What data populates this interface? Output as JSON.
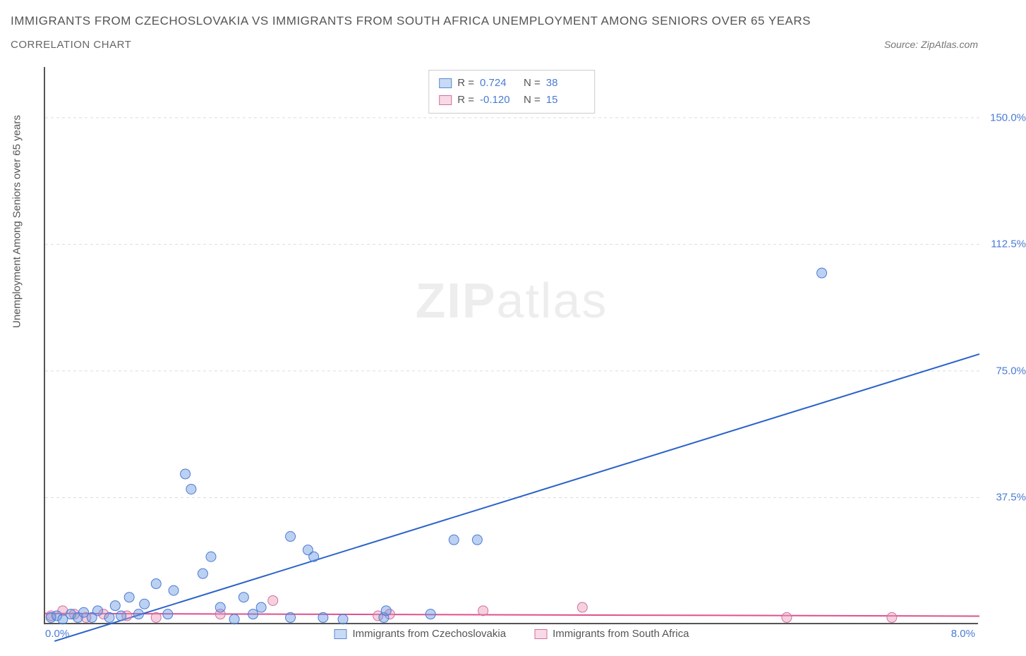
{
  "title": "IMMIGRANTS FROM CZECHOSLOVAKIA VS IMMIGRANTS FROM SOUTH AFRICA UNEMPLOYMENT AMONG SENIORS OVER 65 YEARS",
  "subtitle": "CORRELATION CHART",
  "source": "Source: ZipAtlas.com",
  "ylabel": "Unemployment Among Seniors over 65 years",
  "watermark_a": "ZIP",
  "watermark_b": "atlas",
  "chart": {
    "type": "scatter",
    "background_color": "#ffffff",
    "grid_color": "#dddddd",
    "axis_color": "#555555",
    "xlim": [
      0.0,
      8.0
    ],
    "ylim": [
      0.0,
      165.0
    ],
    "xticks": [
      {
        "pos": 0.0,
        "label": "0.0%"
      },
      {
        "pos": 8.0,
        "label": "8.0%"
      }
    ],
    "yticks": [
      {
        "pos": 37.5,
        "label": "37.5%"
      },
      {
        "pos": 75.0,
        "label": "75.0%"
      },
      {
        "pos": 112.5,
        "label": "112.5%"
      },
      {
        "pos": 150.0,
        "label": "150.0%"
      }
    ],
    "marker_radius": 7,
    "marker_opacity": 0.45,
    "line_width": 2,
    "series_a": {
      "name": "Immigrants from Czechoslovakia",
      "color_fill": "#6a9ae0",
      "color_stroke": "#4a7bd4",
      "R": "0.724",
      "N": "38",
      "trend": {
        "x1": 0.08,
        "y1": -5.0,
        "x2": 8.0,
        "y2": 80.0,
        "color": "#2a62c9"
      },
      "points": [
        [
          0.05,
          2.0
        ],
        [
          0.1,
          2.5
        ],
        [
          0.15,
          1.5
        ],
        [
          0.22,
          3.0
        ],
        [
          0.28,
          2.0
        ],
        [
          0.33,
          3.5
        ],
        [
          0.4,
          2.0
        ],
        [
          0.45,
          4.0
        ],
        [
          0.55,
          2.0
        ],
        [
          0.6,
          5.5
        ],
        [
          0.65,
          2.5
        ],
        [
          0.72,
          8.0
        ],
        [
          0.8,
          3.0
        ],
        [
          0.85,
          6.0
        ],
        [
          0.95,
          12.0
        ],
        [
          1.05,
          3.0
        ],
        [
          1.1,
          10.0
        ],
        [
          1.2,
          44.5
        ],
        [
          1.25,
          40.0
        ],
        [
          1.35,
          15.0
        ],
        [
          1.42,
          20.0
        ],
        [
          1.5,
          5.0
        ],
        [
          1.62,
          1.5
        ],
        [
          1.7,
          8.0
        ],
        [
          1.78,
          3.0
        ],
        [
          1.85,
          5.0
        ],
        [
          2.1,
          26.0
        ],
        [
          2.1,
          2.0
        ],
        [
          2.25,
          22.0
        ],
        [
          2.3,
          20.0
        ],
        [
          2.38,
          2.0
        ],
        [
          2.55,
          1.5
        ],
        [
          2.9,
          2.0
        ],
        [
          2.92,
          4.0
        ],
        [
          3.3,
          3.0
        ],
        [
          3.5,
          25.0
        ],
        [
          3.7,
          25.0
        ],
        [
          6.65,
          104.0
        ]
      ]
    },
    "series_b": {
      "name": "Immigrants from South Africa",
      "color_fill": "#e89ab8",
      "color_stroke": "#d070a0",
      "R": "-0.120",
      "N": "15",
      "trend": {
        "x1": 0.0,
        "y1": 3.2,
        "x2": 8.0,
        "y2": 2.4,
        "color": "#e05090"
      },
      "points": [
        [
          0.05,
          2.5
        ],
        [
          0.15,
          4.0
        ],
        [
          0.25,
          3.0
        ],
        [
          0.35,
          2.0
        ],
        [
          0.5,
          3.0
        ],
        [
          0.7,
          2.5
        ],
        [
          0.95,
          2.0
        ],
        [
          1.5,
          3.0
        ],
        [
          1.95,
          7.0
        ],
        [
          2.85,
          2.5
        ],
        [
          2.95,
          3.0
        ],
        [
          3.75,
          4.0
        ],
        [
          4.6,
          5.0
        ],
        [
          6.35,
          2.0
        ],
        [
          7.25,
          2.0
        ]
      ]
    }
  },
  "stat_labels": {
    "R": "R =",
    "N": "N ="
  }
}
